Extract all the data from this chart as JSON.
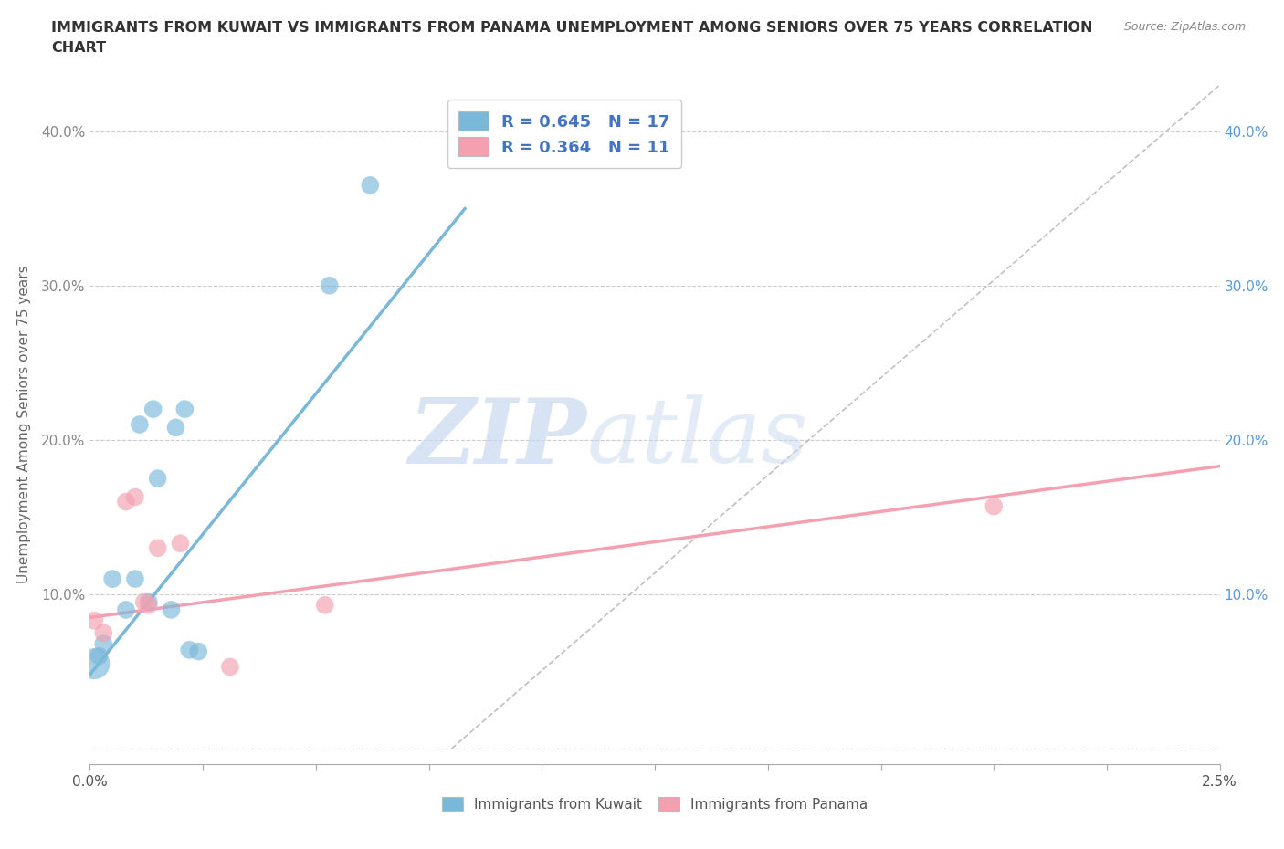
{
  "title_line1": "IMMIGRANTS FROM KUWAIT VS IMMIGRANTS FROM PANAMA UNEMPLOYMENT AMONG SENIORS OVER 75 YEARS CORRELATION",
  "title_line2": "CHART",
  "source": "Source: ZipAtlas.com",
  "ylabel": "Unemployment Among Seniors over 75 years",
  "xlim": [
    0.0,
    0.025
  ],
  "ylim": [
    -0.01,
    0.43
  ],
  "xticks": [
    0.0,
    0.0025,
    0.005,
    0.0075,
    0.01,
    0.0125,
    0.015,
    0.0175,
    0.02,
    0.0225,
    0.025
  ],
  "xtick_labels_show": {
    "0.0": "0.0%",
    "0.025": "2.5%"
  },
  "yticks": [
    0.0,
    0.1,
    0.2,
    0.3,
    0.4
  ],
  "ytick_labels_left": [
    "",
    "10.0%",
    "20.0%",
    "30.0%",
    "40.0%"
  ],
  "ytick_labels_right": [
    "",
    "10.0%",
    "20.0%",
    "30.0%",
    "40.0%"
  ],
  "kuwait_color": "#7ab8d9",
  "panama_color": "#f4a0b0",
  "kuwait_R": 0.645,
  "kuwait_N": 17,
  "panama_R": 0.364,
  "panama_N": 11,
  "kuwait_scatter_x": [
    0.0001,
    0.0002,
    0.0003,
    0.0005,
    0.0008,
    0.001,
    0.0011,
    0.0013,
    0.0014,
    0.0015,
    0.0018,
    0.0019,
    0.0021,
    0.0022,
    0.0024,
    0.0053,
    0.0062
  ],
  "kuwait_scatter_y": [
    0.055,
    0.06,
    0.068,
    0.11,
    0.09,
    0.11,
    0.21,
    0.095,
    0.22,
    0.175,
    0.09,
    0.208,
    0.22,
    0.064,
    0.063,
    0.3,
    0.365
  ],
  "kuwait_scatter_size": [
    600,
    200,
    200,
    200,
    200,
    200,
    200,
    200,
    200,
    200,
    200,
    200,
    200,
    200,
    200,
    200,
    200
  ],
  "panama_scatter_x": [
    0.0001,
    0.0003,
    0.0008,
    0.001,
    0.0012,
    0.0013,
    0.0015,
    0.002,
    0.0031,
    0.0052,
    0.02
  ],
  "panama_scatter_y": [
    0.083,
    0.075,
    0.16,
    0.163,
    0.095,
    0.093,
    0.13,
    0.133,
    0.053,
    0.093,
    0.157
  ],
  "panama_scatter_size": [
    200,
    200,
    200,
    200,
    200,
    200,
    200,
    200,
    200,
    200,
    200
  ],
  "kuwait_trend_x": [
    0.0,
    0.0083
  ],
  "kuwait_trend_y": [
    0.048,
    0.35
  ],
  "panama_trend_x": [
    0.0,
    0.025
  ],
  "panama_trend_y": [
    0.085,
    0.183
  ],
  "ref_line_x": [
    0.008,
    0.025
  ],
  "ref_line_y": [
    0.0,
    0.43
  ],
  "background_color": "#ffffff",
  "grid_color": "#cccccc",
  "watermark_zip": "ZIP",
  "watermark_atlas": "atlas",
  "left_tick_color": "#888888",
  "right_tick_color": "#5b9bd5",
  "legend_R_color": "#4472c4"
}
